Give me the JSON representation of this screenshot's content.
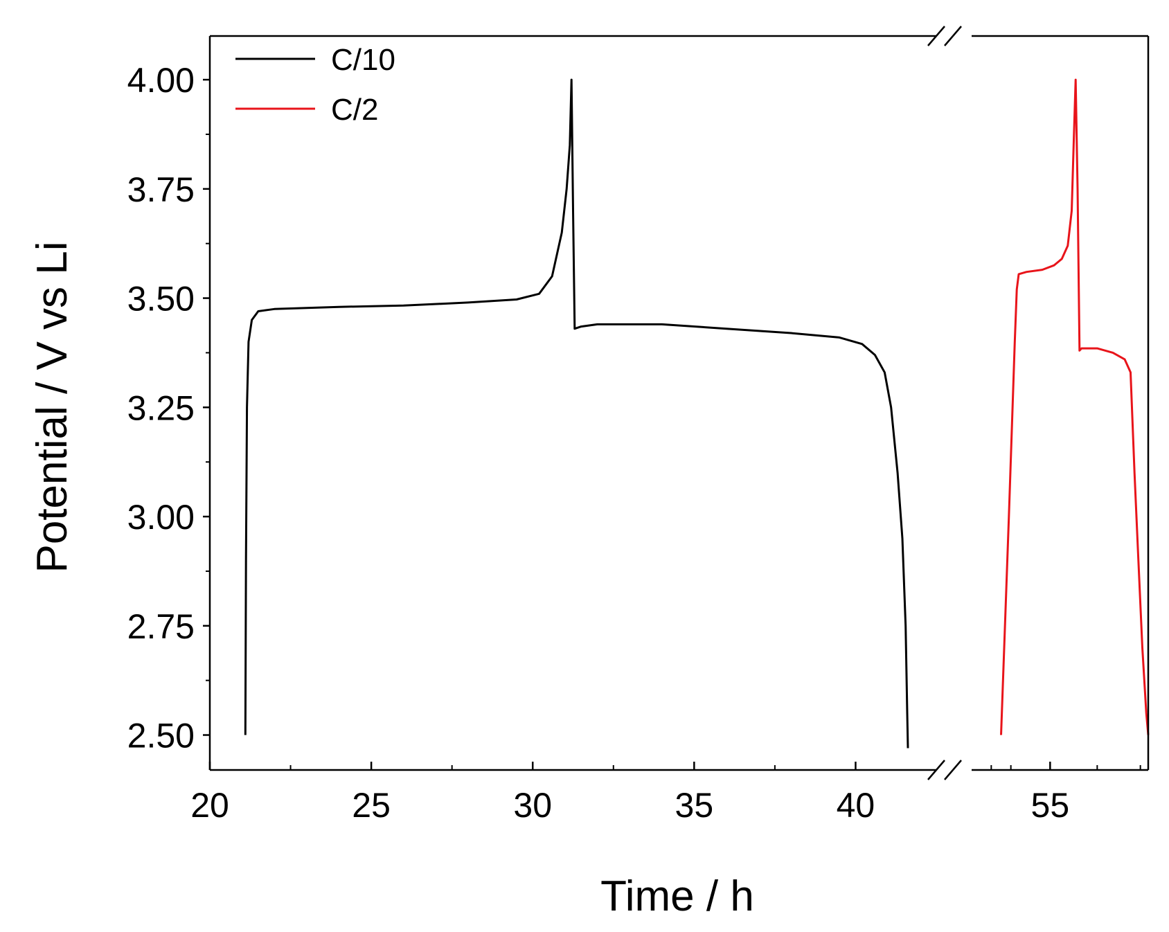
{
  "chart_data": {
    "type": "line",
    "title": "",
    "xlabel": "Time / h",
    "ylabel": "Potential / V vs Li",
    "xlim_left": [
      20,
      42.5
    ],
    "xlim_right": [
      53,
      57.5
    ],
    "ylim": [
      2.42,
      4.1
    ],
    "x_ticks_left": [
      20,
      25,
      30,
      35,
      40
    ],
    "x_ticks_right": [
      55
    ],
    "x_tick_labels_left": [
      "20",
      "25",
      "30",
      "35",
      "40"
    ],
    "x_tick_labels_right": [
      "55"
    ],
    "y_ticks": [
      2.5,
      2.75,
      3.0,
      3.25,
      3.5,
      3.75,
      4.0
    ],
    "y_tick_labels": [
      "2.50",
      "2.75",
      "3.00",
      "3.25",
      "3.50",
      "3.75",
      "4.00"
    ],
    "axis_break": true,
    "grid": false,
    "legend_position": "top-left",
    "series": [
      {
        "name": "C/10",
        "color": "#000000",
        "segment": "left",
        "x": [
          21.1,
          21.12,
          21.15,
          21.2,
          21.3,
          21.5,
          22,
          24,
          26,
          28,
          29.5,
          30.2,
          30.6,
          30.9,
          31.05,
          31.15,
          31.2,
          31.25,
          31.3,
          31.5,
          32,
          34,
          36,
          38,
          39.5,
          40.2,
          40.6,
          40.9,
          41.1,
          41.3,
          41.45,
          41.55,
          41.6,
          41.62
        ],
        "y": [
          2.5,
          2.9,
          3.25,
          3.4,
          3.45,
          3.47,
          3.475,
          3.48,
          3.483,
          3.49,
          3.497,
          3.51,
          3.55,
          3.65,
          3.75,
          3.85,
          4.0,
          3.7,
          3.43,
          3.435,
          3.44,
          3.44,
          3.43,
          3.42,
          3.41,
          3.395,
          3.37,
          3.33,
          3.25,
          3.1,
          2.95,
          2.75,
          2.55,
          2.47
        ]
      },
      {
        "name": "C/2",
        "color": "#e8141a",
        "segment": "right",
        "x": [
          53.75,
          53.95,
          54.1,
          54.15,
          54.2,
          54.4,
          54.8,
          55.1,
          55.3,
          55.45,
          55.55,
          55.6,
          55.65,
          55.7,
          55.75,
          55.8,
          56.2,
          56.6,
          56.9,
          57.05,
          57.15,
          57.25,
          57.35,
          57.45,
          57.5
        ],
        "y": [
          2.5,
          3.0,
          3.4,
          3.52,
          3.555,
          3.56,
          3.565,
          3.575,
          3.59,
          3.62,
          3.7,
          3.85,
          4.0,
          3.75,
          3.38,
          3.385,
          3.385,
          3.375,
          3.36,
          3.33,
          3.1,
          2.9,
          2.7,
          2.55,
          2.5
        ]
      }
    ]
  }
}
